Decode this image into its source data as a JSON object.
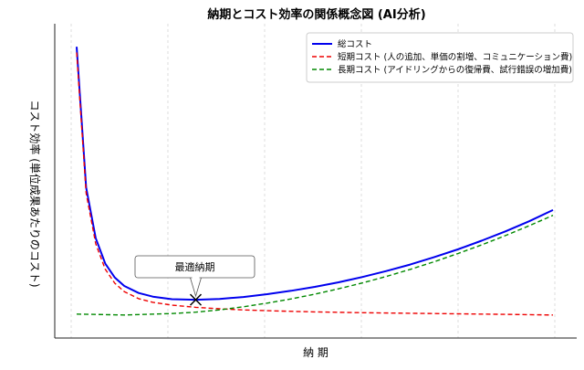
{
  "chart_data": {
    "type": "line",
    "title": "納期とコスト効率の関係概念図 (AI分析)",
    "xlabel": "納 期",
    "ylabel": "コスト効率 (単位成果あたりのコスト)",
    "xlim": [
      0,
      1
    ],
    "ylim": [
      0,
      1
    ],
    "grid": "x-only",
    "legend": "top-right",
    "series": [
      {
        "name": "総コスト",
        "color": "#0000ee",
        "style": "solid",
        "x": [
          0.0,
          0.02,
          0.04,
          0.06,
          0.08,
          0.1,
          0.13,
          0.16,
          0.2,
          0.25,
          0.3,
          0.35,
          0.4,
          0.45,
          0.5,
          0.55,
          0.6,
          0.65,
          0.7,
          0.75,
          0.8,
          0.85,
          0.9,
          0.95,
          1.0
        ],
        "y": [
          0.97,
          0.47,
          0.29,
          0.2,
          0.15,
          0.12,
          0.095,
          0.082,
          0.073,
          0.071,
          0.074,
          0.081,
          0.091,
          0.103,
          0.117,
          0.133,
          0.152,
          0.173,
          0.196,
          0.222,
          0.25,
          0.281,
          0.314,
          0.35,
          0.39
        ]
      },
      {
        "name": "短期コスト (人の追加、単価の割増、コミュニケーション費)",
        "color": "#ee0000",
        "style": "dashed",
        "x": [
          0.0,
          0.02,
          0.04,
          0.06,
          0.08,
          0.1,
          0.13,
          0.16,
          0.2,
          0.25,
          0.3,
          0.35,
          0.4,
          0.5,
          0.6,
          0.7,
          0.8,
          0.9,
          1.0
        ],
        "y": [
          0.95,
          0.45,
          0.27,
          0.18,
          0.13,
          0.1,
          0.075,
          0.062,
          0.052,
          0.044,
          0.039,
          0.035,
          0.032,
          0.028,
          0.025,
          0.023,
          0.021,
          0.019,
          0.017
        ]
      },
      {
        "name": "長期コスト (アイドリングからの復帰費、試行錯誤の増加費)",
        "color": "#008800",
        "style": "dashed",
        "x": [
          0.0,
          0.1,
          0.2,
          0.25,
          0.3,
          0.35,
          0.4,
          0.45,
          0.5,
          0.55,
          0.6,
          0.65,
          0.7,
          0.75,
          0.8,
          0.85,
          0.9,
          0.95,
          1.0
        ],
        "y": [
          0.02,
          0.017,
          0.022,
          0.027,
          0.035,
          0.046,
          0.059,
          0.074,
          0.091,
          0.11,
          0.131,
          0.154,
          0.179,
          0.206,
          0.235,
          0.266,
          0.299,
          0.334,
          0.371
        ]
      }
    ],
    "annotations": [
      {
        "text": "最適納期",
        "x": 0.25,
        "y": 0.071,
        "marker": "x"
      }
    ]
  }
}
